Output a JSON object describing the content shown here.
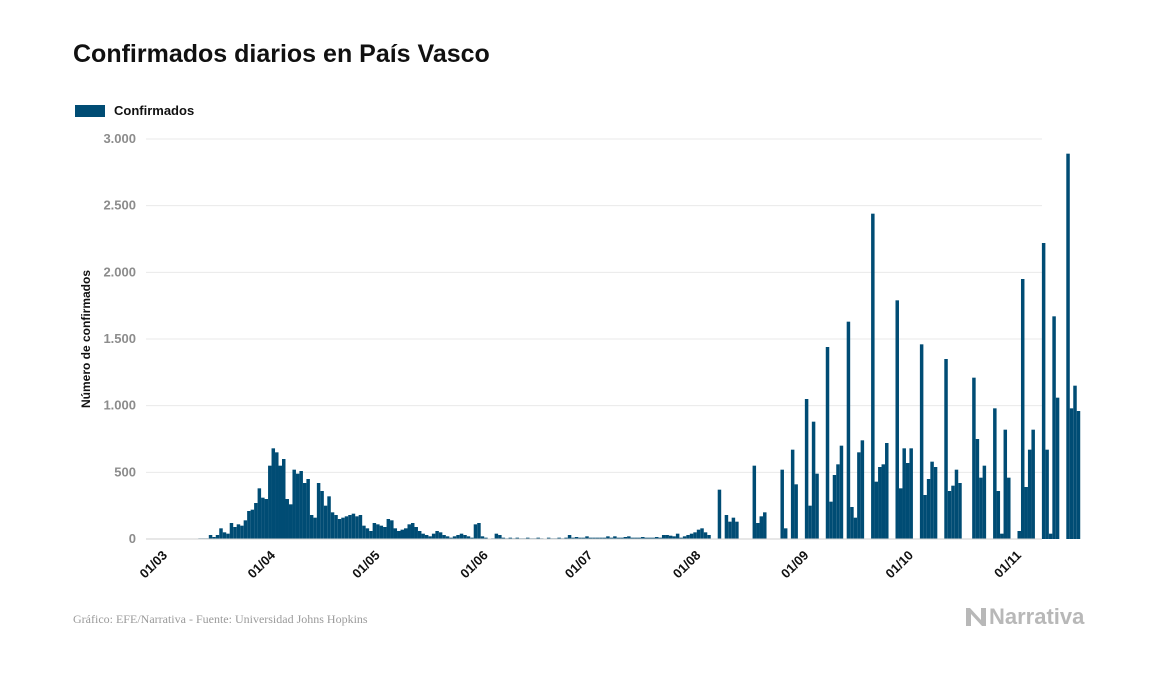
{
  "title": "Confirmados diarios en País Vasco",
  "legend": {
    "label": "Confirmados",
    "color": "#004c74"
  },
  "footer": {
    "source": "Gráfico: EFE/Narrativa - Fuente: Universidad Johns Hopkins",
    "brand": "Narrativa",
    "brand_icon": "narrativa-logo-icon"
  },
  "chart_data": {
    "type": "bar",
    "title": "Confirmados diarios en País Vasco",
    "ylabel": "Número de confirmados",
    "xlabel": "",
    "ylim": [
      0,
      3000
    ],
    "yticks": [
      0,
      500,
      1000,
      1500,
      2000,
      2500,
      3000
    ],
    "ytick_labels": [
      "0",
      "500",
      "1.000",
      "1.500",
      "2.000",
      "2.500",
      "3.000"
    ],
    "xlim": [
      "2020-03-01",
      "2020-11-01"
    ],
    "xticks": [
      "2020-03-01",
      "2020-04-01",
      "2020-05-01",
      "2020-06-01",
      "2020-07-01",
      "2020-08-01",
      "2020-09-01",
      "2020-10-01",
      "2020-11-01"
    ],
    "xtick_labels": [
      "01/03",
      "01/04",
      "01/05",
      "01/06",
      "01/07",
      "01/08",
      "01/09",
      "01/10",
      "01/11"
    ],
    "grid": true,
    "legend_position": "top-left",
    "series": [
      {
        "name": "Confirmados",
        "color": "#004c74",
        "start_date": "2020-03-01",
        "values": [
          0,
          0,
          0,
          0,
          0,
          0,
          0,
          0,
          0,
          0,
          0,
          5,
          5,
          5,
          30,
          15,
          30,
          80,
          50,
          40,
          120,
          90,
          110,
          100,
          140,
          210,
          220,
          270,
          380,
          310,
          300,
          550,
          680,
          650,
          550,
          600,
          300,
          260,
          520,
          490,
          510,
          420,
          450,
          180,
          160,
          420,
          360,
          250,
          320,
          200,
          180,
          150,
          160,
          170,
          180,
          190,
          170,
          180,
          100,
          80,
          60,
          120,
          110,
          100,
          90,
          150,
          140,
          80,
          60,
          70,
          80,
          110,
          120,
          90,
          60,
          40,
          30,
          20,
          40,
          60,
          50,
          30,
          20,
          10,
          20,
          30,
          40,
          30,
          20,
          10,
          110,
          120,
          20,
          10,
          0,
          5,
          40,
          30,
          10,
          5,
          10,
          5,
          10,
          5,
          5,
          10,
          5,
          5,
          10,
          5,
          0,
          10,
          5,
          5,
          10,
          5,
          10,
          30,
          10,
          15,
          10,
          10,
          20,
          10,
          10,
          10,
          10,
          10,
          20,
          10,
          20,
          10,
          10,
          15,
          20,
          10,
          10,
          10,
          15,
          10,
          10,
          10,
          15,
          10,
          30,
          30,
          25,
          20,
          40,
          10,
          20,
          30,
          40,
          50,
          70,
          80,
          50,
          30,
          0,
          0,
          370,
          0,
          180,
          130,
          160,
          130,
          0,
          0,
          0,
          0,
          550,
          120,
          170,
          200,
          0,
          0,
          0,
          0,
          520,
          80,
          0,
          670,
          410,
          0,
          0,
          1050,
          250,
          880,
          490,
          0,
          0,
          1440,
          280,
          480,
          560,
          700,
          0,
          1630,
          240,
          160,
          650,
          740,
          0,
          0,
          2440,
          430,
          540,
          560,
          720,
          0,
          0,
          1790,
          380,
          680,
          570,
          680,
          0,
          0,
          1460,
          330,
          450,
          580,
          540,
          0,
          0,
          1350,
          360,
          400,
          520,
          420,
          0,
          0,
          0,
          1210,
          750,
          460,
          550,
          0,
          0,
          980,
          360,
          40,
          820,
          460,
          0,
          0,
          60,
          1950,
          390,
          670,
          820,
          0,
          0,
          2220,
          670,
          40,
          1670,
          1060,
          0,
          0,
          2890,
          980,
          1150,
          960
        ]
      }
    ]
  }
}
